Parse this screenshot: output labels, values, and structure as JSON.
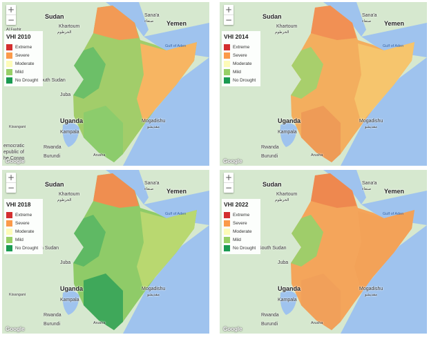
{
  "legend_classes": [
    {
      "label": "Extreme",
      "color": "#d32f2f"
    },
    {
      "label": "Severe",
      "color": "#fb9a49"
    },
    {
      "label": "Moderate",
      "color": "#fdfbb8"
    },
    {
      "label": "Mild",
      "color": "#98d067"
    },
    {
      "label": "No Drought",
      "color": "#1b9a52"
    }
  ],
  "zoom": {
    "in": "+",
    "out": "−"
  },
  "attribution": "Google",
  "panels": [
    {
      "title": "VHI 2010",
      "places": {
        "sudan": "Sudan",
        "khartoum": "Khartoum",
        "khartoum_ar": "الخرطوم",
        "sanaa": "Sana'a",
        "sanaa_ar": "صنعاء",
        "yemen": "Yemen",
        "al_fashir": "Al Fashir",
        "south_sudan": "outh Sudan",
        "juba": "Juba",
        "gulf": "Gulf of Aden",
        "uganda": "Uganda",
        "kampala": "Kampala",
        "kisangani": "Kisangani",
        "drc1": "emocratic",
        "drc2": "epublic of",
        "drc3": "he Congo",
        "rwanda": "Rwanda",
        "burundi": "Burundi",
        "mogadishu": "Mogadishu",
        "mogadishu_ar": "مقديشو",
        "arusha": "Arusha"
      },
      "colors": {
        "base": "#a2cd6a",
        "north": "#f29a55",
        "east": "#f7b562",
        "west": "#6cbf68",
        "south": "#8ccc6c"
      }
    },
    {
      "title": "VHI 2014",
      "places": {
        "sudan": "Sudan",
        "khartoum": "Khartoum",
        "khartoum_ar": "الخرطوم",
        "sanaa": "Sana'a",
        "sanaa_ar": "صنعاء",
        "yemen": "Yemen",
        "gulf": "Gulf of Aden",
        "uganda": "Uganda",
        "kampala": "Kampala",
        "rwanda": "Rwanda",
        "burundi": "Burundi",
        "mogadishu": "Mogadishu",
        "mogadishu_ar": "مقديشو",
        "arusha": "Arusha"
      },
      "colors": {
        "base": "#f3ae5e",
        "north": "#f19054",
        "east": "#f6c56d",
        "west": "#a8cf6c",
        "south": "#ee9b57"
      }
    },
    {
      "title": "VHI 2018",
      "places": {
        "sudan": "Sudan",
        "khartoum": "Khartoum",
        "khartoum_ar": "الخرطوم",
        "sanaa": "Sana'a",
        "sanaa_ar": "صنعاء",
        "yemen": "Yemen",
        "south_sudan": "h Sudan",
        "juba": "Juba",
        "gulf": "Gulf of Aden",
        "uganda": "Uganda",
        "kampala": "Kampala",
        "kisangani": "Kisangani",
        "rwanda": "Rwanda",
        "burundi": "Burundi",
        "mogadishu": "Mogadishu",
        "mogadishu_ar": "مقديشو",
        "arusha": "Arusha"
      },
      "colors": {
        "base": "#8fcb68",
        "north": "#ef8e50",
        "east": "#b9d870",
        "west": "#5fb964",
        "south": "#3fa85a"
      }
    },
    {
      "title": "VHI 2022",
      "places": {
        "sudan": "Sudan",
        "khartoum": "Khartoum",
        "khartoum_ar": "الخرطوم",
        "sanaa": "Sana'a",
        "sanaa_ar": "صنعاء",
        "yemen": "Yemen",
        "south_sudan": "South Sudan",
        "juba": "Juba",
        "gulf": "Gulf of Aden",
        "uganda": "Uganda",
        "kampala": "Kampala",
        "rwanda": "Rwanda",
        "burundi": "Burundi",
        "mogadishu": "Mogadishu",
        "mogadishu_ar": "مقديشو",
        "arusha": "Arusha"
      },
      "colors": {
        "base": "#f4a55b",
        "north": "#ee884f",
        "east": "#f3a258",
        "west": "#9fcd6a",
        "south": "#f1a05a"
      }
    }
  ]
}
